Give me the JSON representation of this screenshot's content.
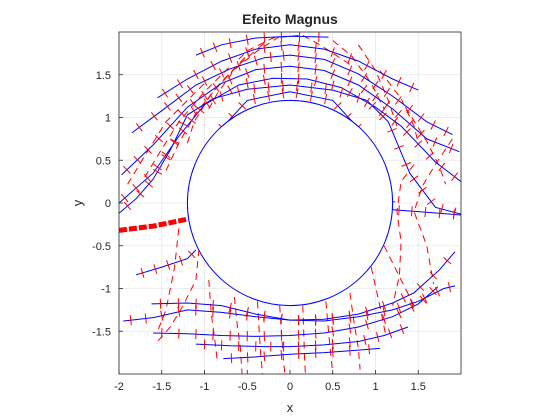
{
  "chart_data": {
    "type": "line",
    "title": "Efeito Magnus",
    "xlabel": "x",
    "ylabel": "y",
    "xlim": [
      -2,
      2
    ],
    "ylim": [
      -2,
      2
    ],
    "grid": true,
    "xticks": [
      -2,
      -1.5,
      -1,
      -0.5,
      0,
      0.5,
      1,
      1.5
    ],
    "xtick_labels": [
      "-2",
      "-1.5",
      "-1",
      "-0.5",
      "0",
      "0.5",
      "1",
      "1.5"
    ],
    "yticks": [
      -1.5,
      -1,
      -0.5,
      0,
      0.5,
      1,
      1.5
    ],
    "ytick_labels": [
      "-1.5",
      "-1",
      "-0.5",
      "0",
      "0.5",
      "1",
      "1.5"
    ],
    "cylinder": {
      "center": [
        0,
        0
      ],
      "radius": 1.2
    },
    "colors": {
      "streamline": "#0000ff",
      "equipotential": "#ff0000",
      "stagnation": "#ff0000",
      "grid": "#e6e6e6",
      "axes": "#262626"
    },
    "stagnation_line": {
      "x": [
        -2.0,
        -1.6,
        -1.2
      ],
      "y": [
        -0.32,
        -0.27,
        -0.19
      ]
    },
    "streamlines": [
      {
        "x": [
          -1.1,
          -0.8,
          -0.4,
          0.0,
          0.45
        ],
        "y": [
          1.73,
          1.85,
          1.93,
          1.95,
          1.94
        ]
      },
      {
        "x": [
          -1.55,
          -1.2,
          -0.8,
          -0.4,
          0.0,
          0.4,
          0.8,
          1.2,
          1.5
        ],
        "y": [
          1.23,
          1.45,
          1.66,
          1.8,
          1.85,
          1.8,
          1.66,
          1.45,
          1.32
        ]
      },
      {
        "x": [
          -1.85,
          -1.5,
          -1.1,
          -0.7,
          -0.3,
          0.0,
          0.4,
          0.8,
          1.2,
          1.6,
          1.9
        ],
        "y": [
          0.82,
          1.08,
          1.38,
          1.57,
          1.7,
          1.73,
          1.68,
          1.51,
          1.25,
          0.95,
          0.8
        ]
      },
      {
        "x": [
          -1.97,
          -1.6,
          -1.2,
          -0.8,
          -0.4,
          0.0,
          0.4,
          0.8,
          1.2,
          1.6,
          1.98
        ],
        "y": [
          0.33,
          0.68,
          1.12,
          1.4,
          1.56,
          1.6,
          1.55,
          1.38,
          1.1,
          0.75,
          0.6
        ]
      },
      {
        "x": [
          -2.0,
          -1.6,
          -1.3,
          -1.0,
          -0.6,
          -0.2,
          0.2,
          0.6,
          1.0,
          1.3,
          1.7,
          2.0
        ],
        "y": [
          0.0,
          0.35,
          0.78,
          1.15,
          1.38,
          1.46,
          1.45,
          1.35,
          1.12,
          0.9,
          0.48,
          0.25
        ]
      },
      {
        "x": [
          -2.0,
          -1.8,
          -1.6,
          -1.4,
          -1.2,
          -0.9,
          -0.5,
          0.0,
          0.5,
          0.9,
          1.15,
          1.4,
          1.7,
          2.0
        ],
        "y": [
          -0.12,
          0.05,
          0.28,
          0.62,
          1.03,
          1.22,
          1.33,
          1.38,
          1.32,
          1.2,
          0.95,
          0.35,
          -0.05,
          -0.13
        ]
      },
      {
        "x": [
          -1.05,
          -0.85,
          -0.5,
          0.0,
          0.5,
          0.85,
          1.05,
          1.2
        ],
        "y": [
          0.08,
          0.82,
          1.2,
          1.3,
          1.2,
          0.82,
          0.4,
          -0.08
        ]
      },
      {
        "x": [
          1.2,
          1.5,
          2.0
        ],
        "y": [
          -0.08,
          -0.1,
          -0.14
        ]
      },
      {
        "x": [
          -1.8,
          -1.5,
          -1.2,
          -1.1
        ],
        "y": [
          -0.84,
          -0.75,
          -0.65,
          -0.55
        ]
      },
      {
        "x": [
          -1.95,
          -1.6,
          -1.2,
          -0.8,
          -0.4,
          0.0,
          0.4,
          0.8,
          1.2,
          1.5,
          1.8,
          1.93
        ],
        "y": [
          -1.38,
          -1.34,
          -1.25,
          -1.28,
          -1.33,
          -1.37,
          -1.38,
          -1.33,
          -1.25,
          -1.15,
          -1.0,
          -0.97
        ]
      },
      {
        "x": [
          -1.62,
          -1.2,
          -0.8,
          -0.4,
          0.0,
          0.4,
          0.8,
          1.2,
          1.45,
          1.75,
          1.93
        ],
        "y": [
          -1.18,
          -1.17,
          -1.2,
          -1.3,
          -1.37,
          -1.36,
          -1.3,
          -1.17,
          -1.05,
          -0.78,
          -0.57
        ]
      },
      {
        "x": [
          -1.6,
          -1.2,
          -0.8,
          -0.4,
          0.0,
          0.4,
          0.8,
          1.2,
          1.5,
          1.73
        ],
        "y": [
          -1.52,
          -1.53,
          -1.55,
          -1.56,
          -1.55,
          -1.52,
          -1.45,
          -1.33,
          -1.18,
          -0.98
        ]
      },
      {
        "x": [
          -1.1,
          -0.7,
          -0.3,
          0.0,
          0.4,
          0.8,
          1.1,
          1.38
        ],
        "y": [
          -1.65,
          -1.67,
          -1.68,
          -1.68,
          -1.66,
          -1.62,
          -1.55,
          -1.45
        ]
      },
      {
        "x": [
          -0.78,
          -0.4,
          0.0,
          0.4,
          0.8,
          1.05
        ],
        "y": [
          -1.82,
          -1.8,
          -1.77,
          -1.75,
          -1.72,
          -1.7
        ]
      }
    ],
    "equipotentials": [
      {
        "x": [
          -0.6,
          -0.5,
          -0.2,
          0.1
        ],
        "y": [
          1.68,
          1.78,
          1.93,
          1.96
        ]
      },
      {
        "x": [
          -0.95,
          -0.85,
          -0.65,
          -0.38,
          -0.1
        ],
        "y": [
          1.1,
          1.28,
          1.56,
          1.78,
          1.96
        ]
      },
      {
        "x": [
          -1.2,
          -1.12,
          -0.92,
          -0.62,
          -0.3
        ],
        "y": [
          0.7,
          0.95,
          1.28,
          1.6,
          1.87
        ]
      },
      {
        "x": [
          -1.45,
          -1.3,
          -1.1,
          -0.8,
          -0.48
        ],
        "y": [
          0.38,
          0.7,
          1.05,
          1.42,
          1.75
        ]
      },
      {
        "x": [
          -1.7,
          -1.55,
          -1.3,
          -1.0,
          -0.7
        ],
        "y": [
          0.3,
          0.55,
          0.95,
          1.3,
          1.6
        ]
      },
      {
        "x": [
          -1.9,
          -1.7,
          -1.45,
          -1.2,
          -0.95
        ],
        "y": [
          0.22,
          0.55,
          0.95,
          1.2,
          1.45
        ]
      },
      {
        "x": [
          0.15,
          0.35,
          0.55,
          0.7
        ],
        "y": [
          1.96,
          1.85,
          1.72,
          1.62
        ]
      },
      {
        "x": [
          0.5,
          0.72,
          0.95,
          1.1
        ],
        "y": [
          1.9,
          1.72,
          1.4,
          1.1
        ]
      },
      {
        "x": [
          0.8,
          1.0,
          1.15,
          1.25
        ],
        "y": [
          1.85,
          1.55,
          1.2,
          0.9
        ]
      },
      {
        "x": [
          1.05,
          1.3,
          1.45,
          1.5
        ],
        "y": [
          1.55,
          1.22,
          0.9,
          0.7
        ]
      },
      {
        "x": [
          1.35,
          1.6,
          1.75,
          1.82
        ],
        "y": [
          1.12,
          0.72,
          0.42,
          0.22
        ]
      },
      {
        "x": [
          1.9,
          1.7,
          1.55,
          1.45,
          1.6,
          1.68
        ],
        "y": [
          0.75,
          0.45,
          0.2,
          -0.1,
          -0.5,
          -0.95
        ]
      },
      {
        "x": [
          1.45,
          1.3,
          1.25,
          1.3,
          1.28,
          1.2
        ],
        "y": [
          0.45,
          0.25,
          -0.1,
          -0.45,
          -0.85,
          -1.2
        ]
      },
      {
        "x": [
          -1.05,
          -1.1,
          -1.25,
          -1.4,
          -1.55
        ],
        "y": [
          -0.4,
          -0.9,
          -1.2,
          -1.45,
          -1.62
        ]
      },
      {
        "x": [
          -1.3,
          -1.35,
          -1.45,
          -1.55
        ],
        "y": [
          -0.3,
          -0.75,
          -1.25,
          -1.5
        ]
      },
      {
        "x": [
          -0.95,
          -0.92,
          -0.88,
          -0.85
        ],
        "y": [
          -0.9,
          -1.3,
          -1.6,
          -1.85
        ]
      },
      {
        "x": [
          -0.65,
          -0.62,
          -0.58,
          -0.56
        ],
        "y": [
          -1.1,
          -1.4,
          -1.7,
          -2.0
        ]
      },
      {
        "x": [
          -0.38,
          -0.36,
          -0.34,
          -0.32
        ],
        "y": [
          -1.15,
          -1.5,
          -1.8,
          -2.0
        ]
      },
      {
        "x": [
          -0.12,
          -0.1,
          -0.08,
          -0.06
        ],
        "y": [
          -1.2,
          -1.5,
          -1.8,
          -2.0
        ]
      },
      {
        "x": [
          0.15,
          0.16,
          0.17,
          0.18
        ],
        "y": [
          -1.2,
          -1.5,
          -1.8,
          -2.0
        ]
      },
      {
        "x": [
          0.42,
          0.45,
          0.48,
          0.5
        ],
        "y": [
          -1.15,
          -1.5,
          -1.8,
          -2.0
        ]
      },
      {
        "x": [
          0.7,
          0.75,
          0.8,
          0.82
        ],
        "y": [
          -1.05,
          -1.4,
          -1.7,
          -1.95
        ]
      },
      {
        "x": [
          0.95,
          1.05,
          1.12
        ],
        "y": [
          -0.75,
          -1.2,
          -1.55
        ]
      },
      {
        "x": [
          1.1,
          1.3,
          1.45
        ],
        "y": [
          -0.5,
          -0.9,
          -1.2
        ]
      }
    ],
    "tick_marks": {
      "description_free": true,
      "streamline_index_spacing": 0.13
    }
  }
}
